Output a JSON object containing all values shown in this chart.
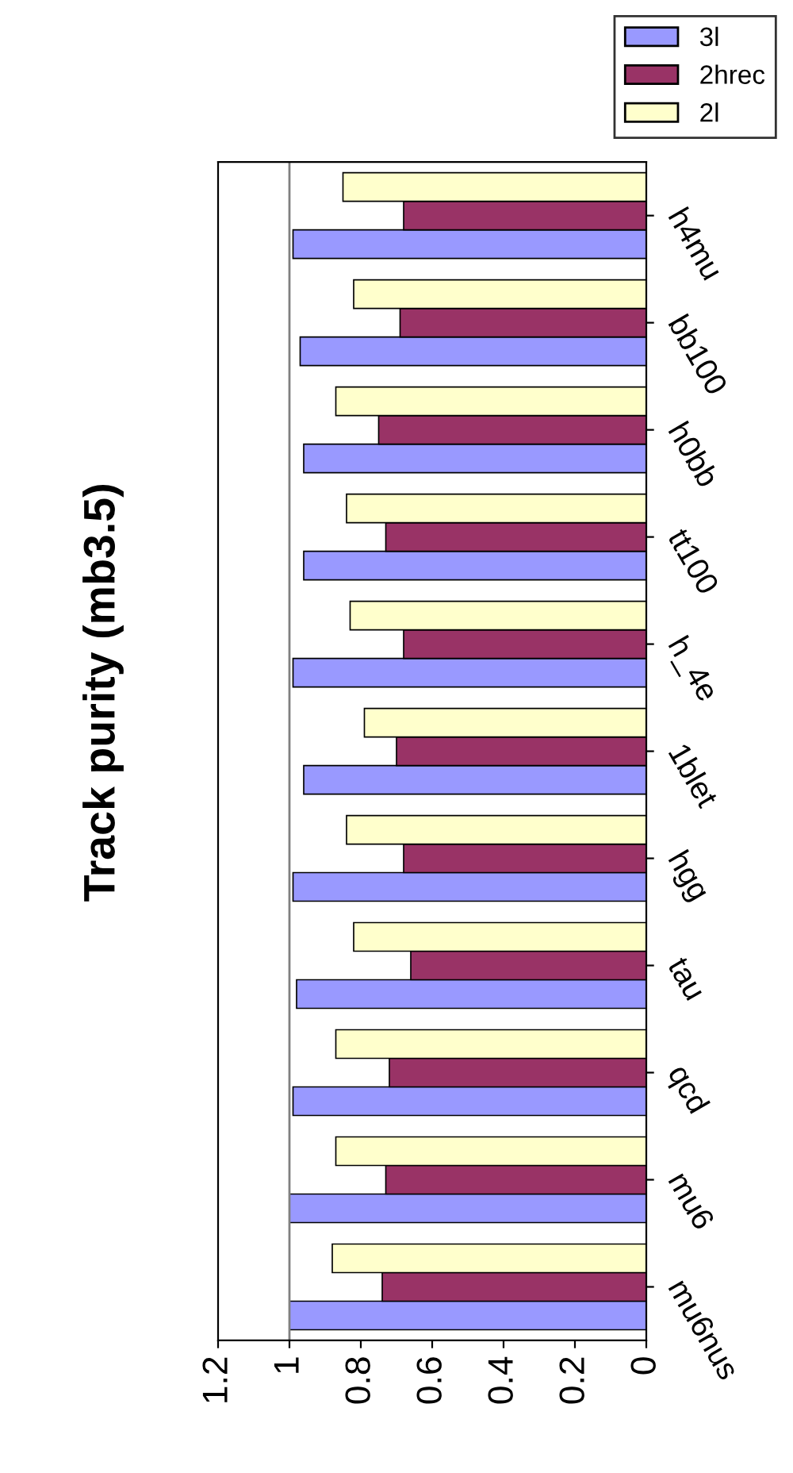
{
  "chart_data": {
    "type": "bar",
    "orientation": "horizontal",
    "title": "Track purity (mb3.5)",
    "categories": [
      "h4mu",
      "bb100",
      "h0bb",
      "tt100",
      "h_4e",
      "1blet",
      "hgg",
      "tau",
      "qcd",
      "mu6",
      "mu6nus"
    ],
    "series": [
      {
        "name": "3l",
        "color": "#9999ff",
        "values": [
          0.99,
          0.97,
          0.96,
          0.96,
          0.99,
          0.96,
          0.99,
          0.98,
          0.99,
          1.0,
          1.0
        ]
      },
      {
        "name": "2hrec",
        "color": "#993366",
        "values": [
          0.68,
          0.69,
          0.75,
          0.73,
          0.68,
          0.7,
          0.68,
          0.66,
          0.72,
          0.73,
          0.74
        ]
      },
      {
        "name": "2l",
        "color": "#ffffcc",
        "values": [
          0.85,
          0.82,
          0.87,
          0.84,
          0.83,
          0.79,
          0.84,
          0.82,
          0.87,
          0.87,
          0.88
        ]
      }
    ],
    "xlim": [
      1.2,
      0
    ],
    "xticks": [
      0,
      0.2,
      0.4,
      0.6,
      0.8,
      1,
      1.2
    ],
    "ref_lines": [
      {
        "axis": "x",
        "value": 1
      }
    ],
    "legend": "top right",
    "grid": false
  }
}
